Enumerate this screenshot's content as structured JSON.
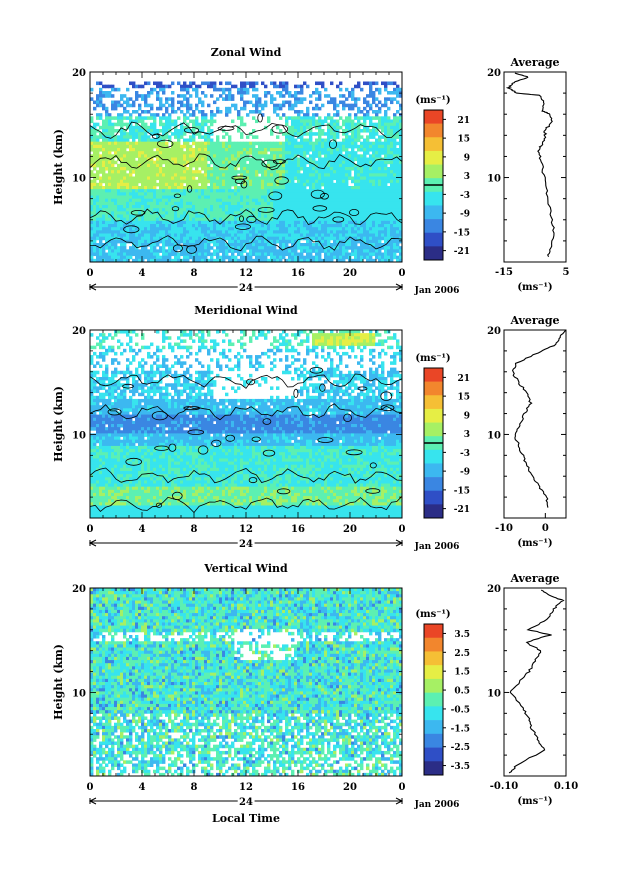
{
  "chart_data": [
    {
      "type": "heatmap",
      "title": "Zonal Wind",
      "ylabel": "Height (km)",
      "ylim": [
        2,
        20
      ],
      "yticks": [
        "10",
        "20"
      ],
      "xlim": [
        0,
        24
      ],
      "xticks": [
        "0",
        "4",
        "8",
        "12",
        "16",
        "20",
        "0"
      ],
      "day_label": "24",
      "date_label": "Jan 2006",
      "colorbar": {
        "unit": "(ms⁻¹)",
        "range": [
          -24,
          24
        ],
        "ticks": [
          "21",
          "15",
          "9",
          "3",
          "-3",
          "-9",
          "-15",
          "-21"
        ],
        "zero_line": true
      },
      "average": {
        "title": "Average",
        "xlabel": "(ms⁻¹)",
        "xlim": [
          -15,
          5
        ],
        "xticks": [
          "-15",
          "5"
        ],
        "yticks": [
          "10",
          "20"
        ],
        "profile": [
          [
            -1.0,
            2.5
          ],
          [
            0.5,
            3.5
          ],
          [
            1.0,
            5.0
          ],
          [
            0.0,
            6.5
          ],
          [
            -1.0,
            8.5
          ],
          [
            -2.0,
            10.0
          ],
          [
            -3.0,
            11.5
          ],
          [
            -4.0,
            12.5
          ],
          [
            -3.0,
            13.0
          ],
          [
            -1.5,
            13.8
          ],
          [
            -2.0,
            14.5
          ],
          [
            0.5,
            15.2
          ],
          [
            0.0,
            16.0
          ],
          [
            -2.5,
            16.3
          ],
          [
            -2.0,
            17.0
          ],
          [
            -3.5,
            17.8
          ],
          [
            -11.0,
            18.0
          ],
          [
            -13.5,
            18.5
          ],
          [
            -12.0,
            19.0
          ],
          [
            -7.0,
            19.5
          ],
          [
            -11.5,
            19.9
          ]
        ]
      }
    },
    {
      "type": "heatmap",
      "title": "Meridional Wind",
      "ylabel": "Height (km)",
      "ylim": [
        2,
        20
      ],
      "yticks": [
        "10",
        "20"
      ],
      "xlim": [
        0,
        24
      ],
      "xticks": [
        "0",
        "4",
        "8",
        "12",
        "16",
        "20",
        "0"
      ],
      "day_label": "24",
      "date_label": "Jan 2006",
      "colorbar": {
        "unit": "(ms⁻¹)",
        "range": [
          -24,
          24
        ],
        "ticks": [
          "21",
          "15",
          "9",
          "3",
          "-3",
          "-9",
          "-15",
          "-21"
        ],
        "zero_line": true
      },
      "average": {
        "title": "Average",
        "xlabel": "(ms⁻¹)",
        "xlim": [
          -10,
          5
        ],
        "xticks": [
          "-10",
          "0"
        ],
        "yticks": [
          "10",
          "20"
        ],
        "profile": [
          [
            0.5,
            3.0
          ],
          [
            0.3,
            4.0
          ],
          [
            -1.5,
            5.0
          ],
          [
            -3.0,
            6.0
          ],
          [
            -4.5,
            7.0
          ],
          [
            -5.5,
            8.0
          ],
          [
            -6.5,
            9.0
          ],
          [
            -7.5,
            10.0
          ],
          [
            -6.0,
            11.0
          ],
          [
            -5.0,
            12.0
          ],
          [
            -3.5,
            13.0
          ],
          [
            -4.5,
            14.0
          ],
          [
            -6.5,
            15.0
          ],
          [
            -8.0,
            16.0
          ],
          [
            -7.0,
            16.8
          ],
          [
            -2.0,
            17.8
          ],
          [
            2.0,
            18.5
          ],
          [
            3.5,
            19.3
          ],
          [
            5.0,
            20.0
          ]
        ]
      }
    },
    {
      "type": "heatmap",
      "title": "Vertical Wind",
      "ylabel": "Height (km)",
      "ylim": [
        2,
        20
      ],
      "yticks": [
        "10",
        "20"
      ],
      "xlim": [
        0,
        24
      ],
      "xticks": [
        "0",
        "4",
        "8",
        "12",
        "16",
        "20",
        "0"
      ],
      "day_label": "24",
      "date_label": "Jan 2006",
      "xlabel": "Local Time",
      "colorbar": {
        "unit": "(ms⁻¹)",
        "range": [
          -4,
          4
        ],
        "ticks": [
          "3.5",
          "2.5",
          "1.5",
          "0.5",
          "-0.5",
          "-1.5",
          "-2.5",
          "-3.5"
        ],
        "zero_line": false
      },
      "average": {
        "title": "Average",
        "xlabel": "(ms⁻¹)",
        "xlim": [
          -0.1,
          0.1
        ],
        "xticks": [
          "-0.10",
          "0.10"
        ],
        "yticks": [
          "10",
          "20"
        ],
        "profile": [
          [
            -0.08,
            2.3
          ],
          [
            -0.06,
            3.0
          ],
          [
            0.03,
            4.5
          ],
          [
            0.01,
            5.5
          ],
          [
            -0.01,
            6.5
          ],
          [
            -0.02,
            7.5
          ],
          [
            -0.04,
            8.5
          ],
          [
            -0.08,
            10.0
          ],
          [
            -0.05,
            11.0
          ],
          [
            -0.02,
            12.0
          ],
          [
            0.0,
            13.0
          ],
          [
            0.02,
            14.0
          ],
          [
            -0.03,
            14.8
          ],
          [
            0.05,
            15.5
          ],
          [
            -0.02,
            16.0
          ],
          [
            0.04,
            17.0
          ],
          [
            0.06,
            18.0
          ],
          [
            0.09,
            18.8
          ],
          [
            0.05,
            19.3
          ],
          [
            0.02,
            19.8
          ]
        ]
      }
    }
  ]
}
